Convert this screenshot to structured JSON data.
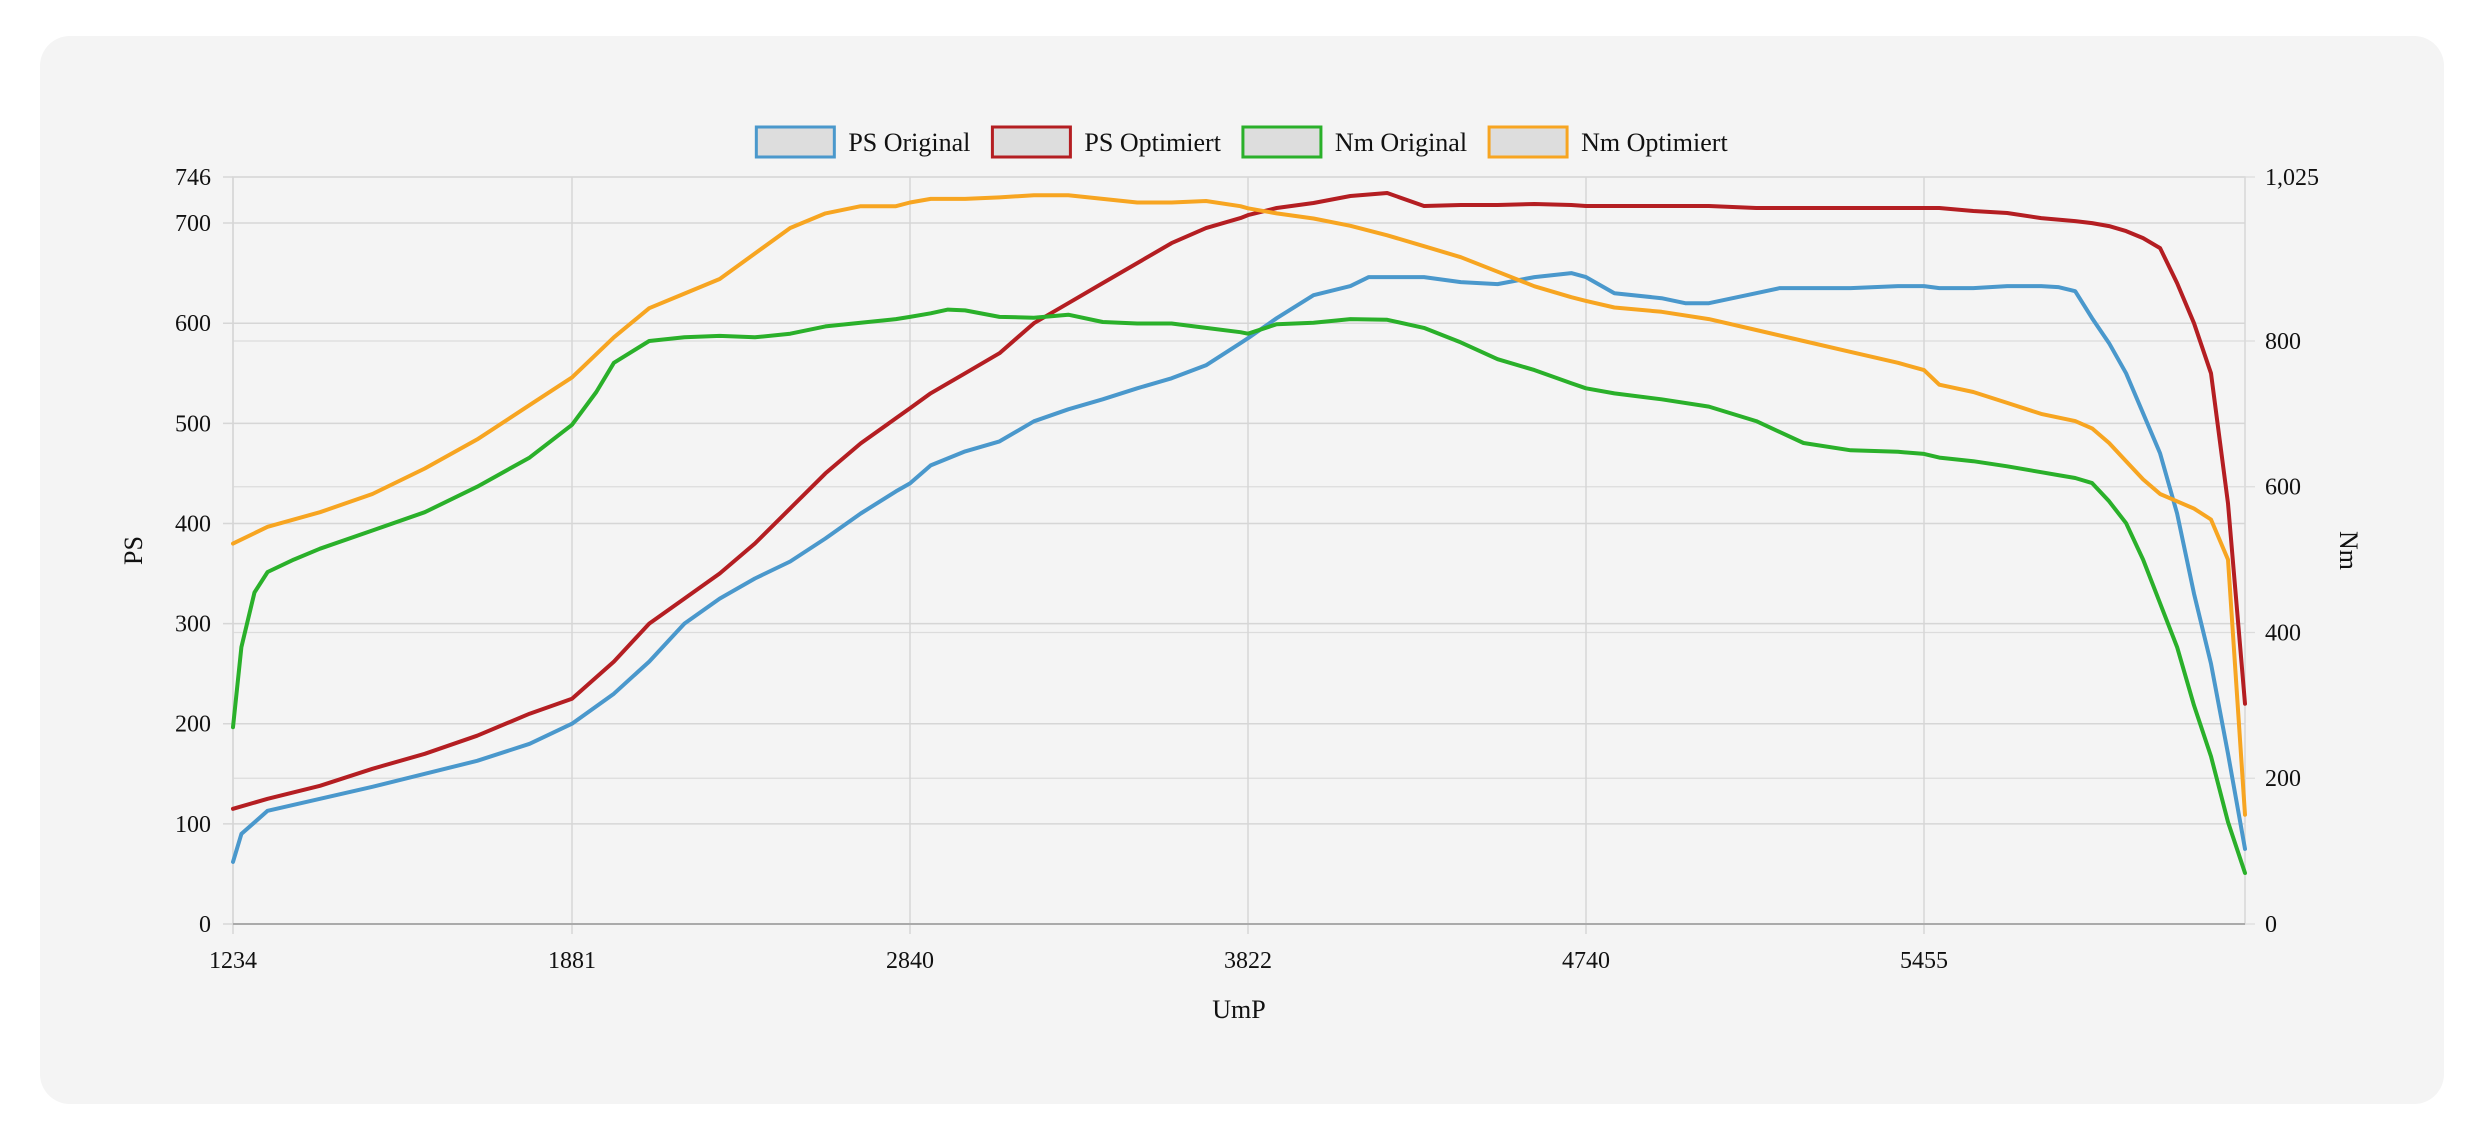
{
  "chart_data": {
    "type": "line",
    "xlabel": "UmP",
    "y_left_label": "PS",
    "y_right_label": "Nm",
    "x_ticks": [
      "1234",
      "1881",
      "2840",
      "3822",
      "4740",
      "5455"
    ],
    "y_left_ticks": [
      "0",
      "100",
      "200",
      "300",
      "400",
      "500",
      "600",
      "700",
      "746"
    ],
    "y_right_ticks": [
      "0",
      "200",
      "400",
      "600",
      "800",
      "1,025"
    ],
    "y_left_range": [
      0,
      746
    ],
    "y_right_range": [
      0,
      1025
    ],
    "grid": true,
    "legend_position": "top-center",
    "series": [
      {
        "name": "PS Original",
        "axis": "left",
        "color": "#4a98cc",
        "x": [
          1234,
          1250,
          1300,
          1400,
          1500,
          1600,
          1700,
          1800,
          1881,
          2000,
          2100,
          2200,
          2300,
          2400,
          2500,
          2600,
          2700,
          2800,
          2840,
          2900,
          3000,
          3100,
          3200,
          3300,
          3400,
          3500,
          3600,
          3700,
          3800,
          3822,
          3900,
          4000,
          4100,
          4150,
          4200,
          4300,
          4400,
          4500,
          4600,
          4700,
          4740,
          4800,
          4900,
          4950,
          5000,
          5100,
          5150,
          5200,
          5300,
          5400,
          5455,
          5500,
          5600,
          5700,
          5800,
          5850,
          5900,
          5950,
          6000,
          6050,
          6100,
          6150,
          6200,
          6250,
          6300,
          6350,
          6400
        ],
        "y": [
          62,
          90,
          113,
          125,
          137,
          150,
          163,
          180,
          200,
          230,
          262,
          300,
          325,
          345,
          362,
          385,
          410,
          432,
          440,
          458,
          472,
          482,
          502,
          514,
          524,
          535,
          545,
          558,
          580,
          585,
          605,
          628,
          637,
          646,
          646,
          646,
          641,
          639,
          646,
          650,
          646,
          630,
          625,
          620,
          620,
          630,
          635,
          635,
          635,
          637,
          637,
          635,
          635,
          637,
          637,
          636,
          632,
          605,
          580,
          550,
          510,
          470,
          410,
          330,
          260,
          170,
          75
        ]
      },
      {
        "name": "PS Optimiert",
        "axis": "left",
        "color": "#b41e22",
        "x": [
          1234,
          1300,
          1400,
          1500,
          1600,
          1700,
          1800,
          1881,
          2000,
          2100,
          2200,
          2300,
          2400,
          2500,
          2600,
          2700,
          2800,
          2840,
          2900,
          3000,
          3100,
          3200,
          3300,
          3400,
          3500,
          3600,
          3700,
          3800,
          3822,
          3900,
          4000,
          4100,
          4200,
          4300,
          4400,
          4500,
          4600,
          4700,
          4740,
          4800,
          4900,
          5000,
          5100,
          5200,
          5300,
          5400,
          5455,
          5500,
          5600,
          5700,
          5800,
          5900,
          5950,
          6000,
          6050,
          6100,
          6150,
          6200,
          6250,
          6300,
          6350,
          6400
        ],
        "y": [
          115,
          125,
          138,
          155,
          170,
          188,
          210,
          225,
          262,
          300,
          325,
          350,
          380,
          415,
          450,
          480,
          505,
          515,
          530,
          550,
          570,
          600,
          620,
          640,
          660,
          680,
          695,
          705,
          708,
          715,
          720,
          727,
          730,
          717,
          718,
          718,
          719,
          718,
          717,
          717,
          717,
          717,
          715,
          715,
          715,
          715,
          715,
          715,
          712,
          710,
          705,
          702,
          700,
          697,
          692,
          685,
          675,
          640,
          600,
          550,
          420,
          220
        ]
      },
      {
        "name": "Nm Original",
        "axis": "right",
        "color": "#2ab02a",
        "x": [
          1234,
          1250,
          1275,
          1300,
          1350,
          1400,
          1500,
          1600,
          1700,
          1800,
          1881,
          1950,
          2000,
          2100,
          2200,
          2300,
          2400,
          2500,
          2600,
          2700,
          2800,
          2840,
          2900,
          2950,
          3000,
          3100,
          3200,
          3300,
          3400,
          3500,
          3600,
          3700,
          3800,
          3822,
          3900,
          4000,
          4100,
          4200,
          4300,
          4400,
          4500,
          4600,
          4700,
          4740,
          4800,
          4900,
          5000,
          5100,
          5200,
          5300,
          5400,
          5455,
          5500,
          5600,
          5700,
          5800,
          5850,
          5900,
          5950,
          6000,
          6050,
          6100,
          6150,
          6200,
          6250,
          6300,
          6350,
          6400
        ],
        "y": [
          270,
          380,
          455,
          483,
          500,
          515,
          540,
          565,
          600,
          640,
          685,
          730,
          770,
          800,
          805,
          807,
          805,
          810,
          820,
          825,
          830,
          833,
          838,
          843,
          842,
          833,
          832,
          836,
          826,
          824,
          824,
          818,
          812,
          810,
          823,
          825,
          830,
          829,
          818,
          798,
          775,
          760,
          742,
          735,
          728,
          720,
          710,
          690,
          660,
          650,
          648,
          645,
          640,
          635,
          628,
          620,
          616,
          612,
          605,
          580,
          550,
          500,
          440,
          380,
          300,
          230,
          140,
          70
        ]
      },
      {
        "name": "Nm Optimiert",
        "axis": "right",
        "color": "#f7a521",
        "x": [
          1234,
          1300,
          1400,
          1500,
          1600,
          1700,
          1800,
          1881,
          2000,
          2100,
          2200,
          2300,
          2400,
          2500,
          2600,
          2700,
          2800,
          2840,
          2900,
          3000,
          3100,
          3200,
          3300,
          3400,
          3500,
          3600,
          3700,
          3800,
          3822,
          3900,
          4000,
          4100,
          4200,
          4300,
          4400,
          4500,
          4600,
          4700,
          4740,
          4800,
          4900,
          5000,
          5100,
          5200,
          5300,
          5400,
          5455,
          5500,
          5600,
          5700,
          5800,
          5900,
          5950,
          6000,
          6050,
          6100,
          6150,
          6200,
          6250,
          6300,
          6350,
          6400
        ],
        "y": [
          522,
          545,
          565,
          590,
          625,
          665,
          712,
          750,
          805,
          845,
          865,
          885,
          920,
          955,
          975,
          985,
          985,
          990,
          995,
          995,
          997,
          1000,
          1000,
          995,
          990,
          990,
          992,
          985,
          982,
          975,
          968,
          958,
          945,
          930,
          915,
          895,
          875,
          860,
          855,
          846,
          840,
          830,
          815,
          800,
          785,
          770,
          760,
          740,
          730,
          715,
          700,
          690,
          680,
          660,
          635,
          610,
          590,
          580,
          570,
          555,
          500,
          150
        ]
      }
    ]
  }
}
